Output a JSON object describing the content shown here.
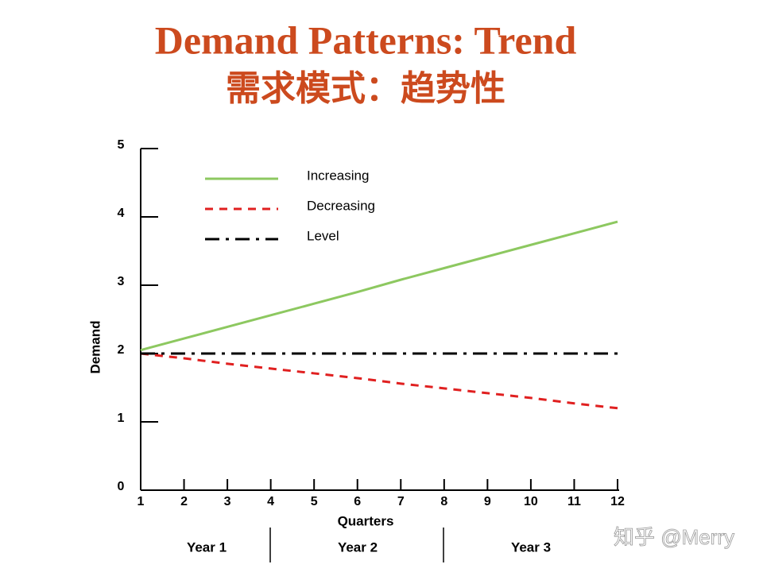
{
  "chart_data": {
    "type": "line",
    "title": "Demand Patterns: Trend",
    "subtitle": "需求模式：趋势性",
    "x_label": "Quarters",
    "y_label": "Demand",
    "x": [
      1,
      2,
      3,
      4,
      5,
      6,
      7,
      8,
      9,
      10,
      11,
      12
    ],
    "series": [
      {
        "name": "Increasing",
        "color": "#8dc860",
        "values": [
          2.05,
          2.22,
          2.39,
          2.56,
          2.73,
          2.9,
          3.08,
          3.25,
          3.42,
          3.59,
          3.76,
          3.93
        ]
      },
      {
        "name": "Decreasing",
        "color": "#e02020",
        "values": [
          2.0,
          1.93,
          1.85,
          1.78,
          1.71,
          1.64,
          1.56,
          1.49,
          1.42,
          1.35,
          1.27,
          1.2
        ]
      },
      {
        "name": "Level",
        "color": "#000000",
        "values": [
          2,
          2,
          2,
          2,
          2,
          2,
          2,
          2,
          2,
          2,
          2,
          2
        ]
      }
    ],
    "xlim": [
      1,
      12
    ],
    "ylim": [
      0,
      5
    ],
    "xticks": [
      1,
      2,
      3,
      4,
      5,
      6,
      7,
      8,
      9,
      10,
      11,
      12
    ],
    "yticks": [
      0,
      1,
      2,
      3,
      4,
      5
    ],
    "year_groups": [
      "Year 1",
      "Year 2",
      "Year 3"
    ],
    "legend": "upper left",
    "grid": false
  },
  "watermark": "知乎 @Merry"
}
